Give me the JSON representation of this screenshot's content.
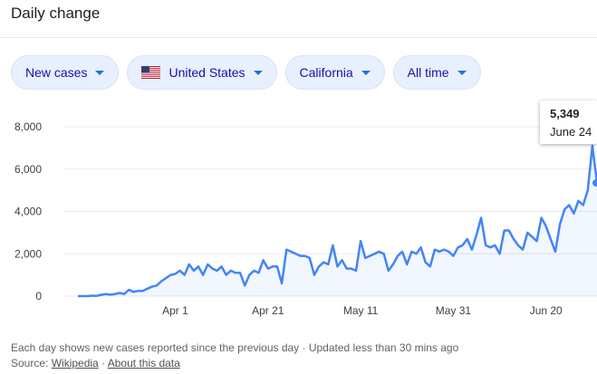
{
  "header": {
    "title": "Daily change"
  },
  "filters": {
    "metric": "New cases",
    "country": "United States",
    "region": "California",
    "period": "All time"
  },
  "tooltip": {
    "value": "5,349",
    "date": "June 24"
  },
  "footer": {
    "note": "Each day shows new cases reported since the previous day · Updated less than 30 mins ago",
    "source_label": "Source:",
    "source_link": "Wikipedia",
    "about_link": "About this data"
  },
  "colors": {
    "line": "#4285f4",
    "chip_bg": "#e8f0fe",
    "chip_text": "#1a0dab",
    "grid": "#e8eaed"
  },
  "chart_data": {
    "type": "area",
    "title": "",
    "xlabel": "",
    "ylabel": "",
    "ylim": [
      0,
      8000
    ],
    "y_ticks": [
      0,
      2000,
      4000,
      6000,
      8000
    ],
    "y_tick_labels": [
      "0",
      "2,000",
      "4,000",
      "6,000",
      "8,000"
    ],
    "x_tick_labels": [
      "Apr 1",
      "Apr 21",
      "May 11",
      "May 31",
      "Jun 20"
    ],
    "grid": true,
    "series": [
      {
        "values": [
          0,
          0,
          0,
          20,
          10,
          60,
          100,
          70,
          100,
          150,
          100,
          300,
          200,
          250,
          250,
          350,
          450,
          500,
          700,
          850,
          1000,
          1050,
          1200,
          1000,
          1500,
          1200,
          1400,
          1000,
          1500,
          1300,
          1200,
          1400,
          1000,
          1200,
          1100,
          1100,
          500,
          1000,
          1200,
          1100,
          1700,
          1300,
          1400,
          1400,
          600,
          2200,
          2100,
          2000,
          1900,
          1900,
          1800,
          1000,
          1400,
          1600,
          1500,
          2400,
          1400,
          1700,
          1300,
          1300,
          1200,
          2600,
          1800,
          1900,
          2000,
          2100,
          2000,
          1200,
          1500,
          1900,
          2100,
          1500,
          2100,
          2000,
          2300,
          1600,
          1400,
          2200,
          2100,
          2200,
          2100,
          1900,
          2300,
          2400,
          2700,
          2200,
          2900,
          3700,
          2400,
          2300,
          2400,
          2000,
          3100,
          3100,
          2700,
          2400,
          2200,
          3000,
          2800,
          2600,
          3700,
          3300,
          2700,
          2100,
          3400,
          4100,
          4300,
          3900,
          4500,
          4300,
          5000,
          7100,
          5349
        ]
      }
    ]
  }
}
